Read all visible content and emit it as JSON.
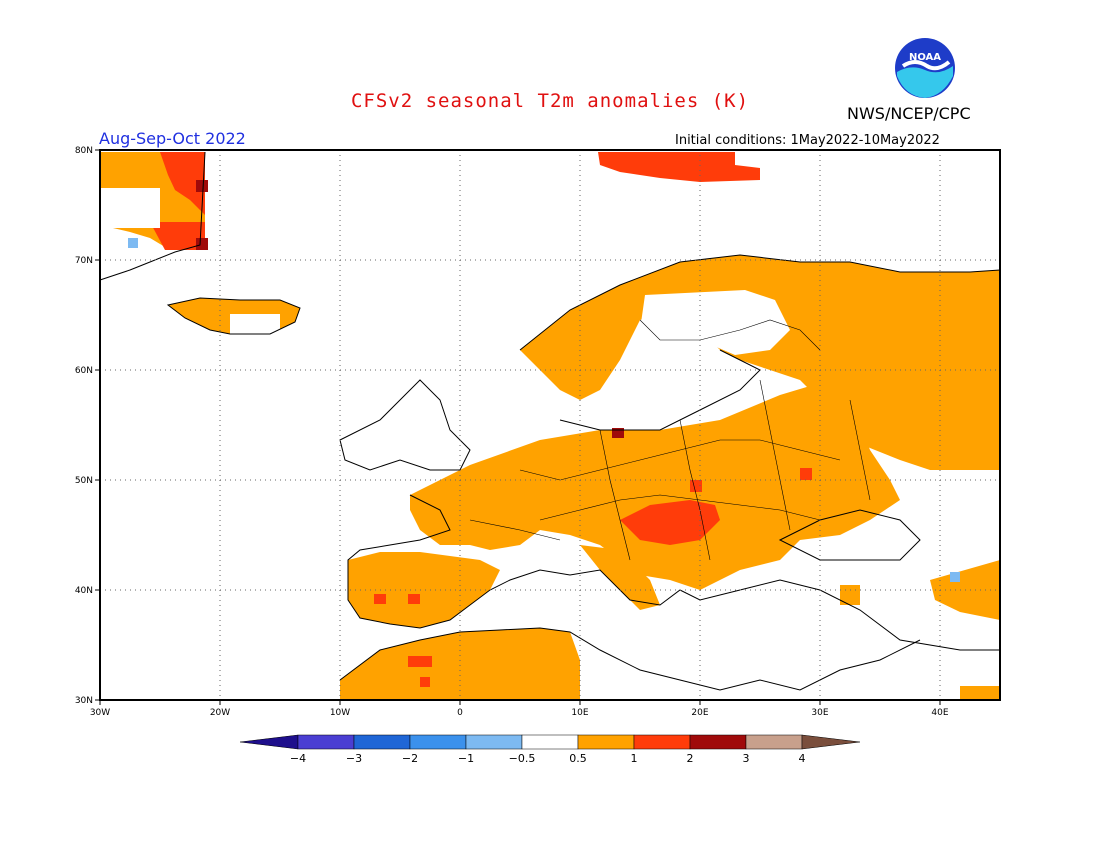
{
  "header": {
    "title": "CFSv2 seasonal T2m anomalies (K)",
    "agency": "NWS/NCEP/CPC",
    "logo_text": "NOAA",
    "season": "Aug-Sep-Oct 2022",
    "initial_conditions": "Initial conditions: 1May2022-10May2022"
  },
  "map": {
    "projection": "lat-lon",
    "lon_range": [
      -30,
      45
    ],
    "lat_range": [
      30,
      80
    ],
    "lon_ticks": [
      "30W",
      "20W",
      "10W",
      "0",
      "10E",
      "20E",
      "30E",
      "40E"
    ],
    "lat_ticks": [
      "30N",
      "40N",
      "50N",
      "60N",
      "70N",
      "80N"
    ],
    "gridlines": "dotted",
    "land_color": "#000000",
    "background": "#ffffff"
  },
  "colorbar": {
    "levels": [
      "-4",
      "-3",
      "-2",
      "-1",
      "-0.5",
      "0.5",
      "1",
      "2",
      "3",
      "4"
    ],
    "colors": [
      "#1e0f8c",
      "#4a3ed2",
      "#1f66d6",
      "#3b91ec",
      "#7dbaf2",
      "#ffffff",
      "#ffa200",
      "#ff3c0a",
      "#a00a0a",
      "#c8a08c",
      "#7a4e3c"
    ]
  },
  "anomaly_regions": [
    {
      "category": "0.5-1",
      "color": "#ffa200",
      "description": "widespread western, central, eastern Europe and Scandinavia"
    },
    {
      "category": "1-2",
      "color": "#ff3c0a",
      "description": "Hungary/Balkans, Svalbard, east Greenland"
    },
    {
      "category": "2-3",
      "color": "#a00a0a",
      "description": "east Greenland coast"
    },
    {
      "category": "-1--0.5",
      "color": "#7dbaf2",
      "description": "small spots near Greenland and Turkey"
    }
  ]
}
